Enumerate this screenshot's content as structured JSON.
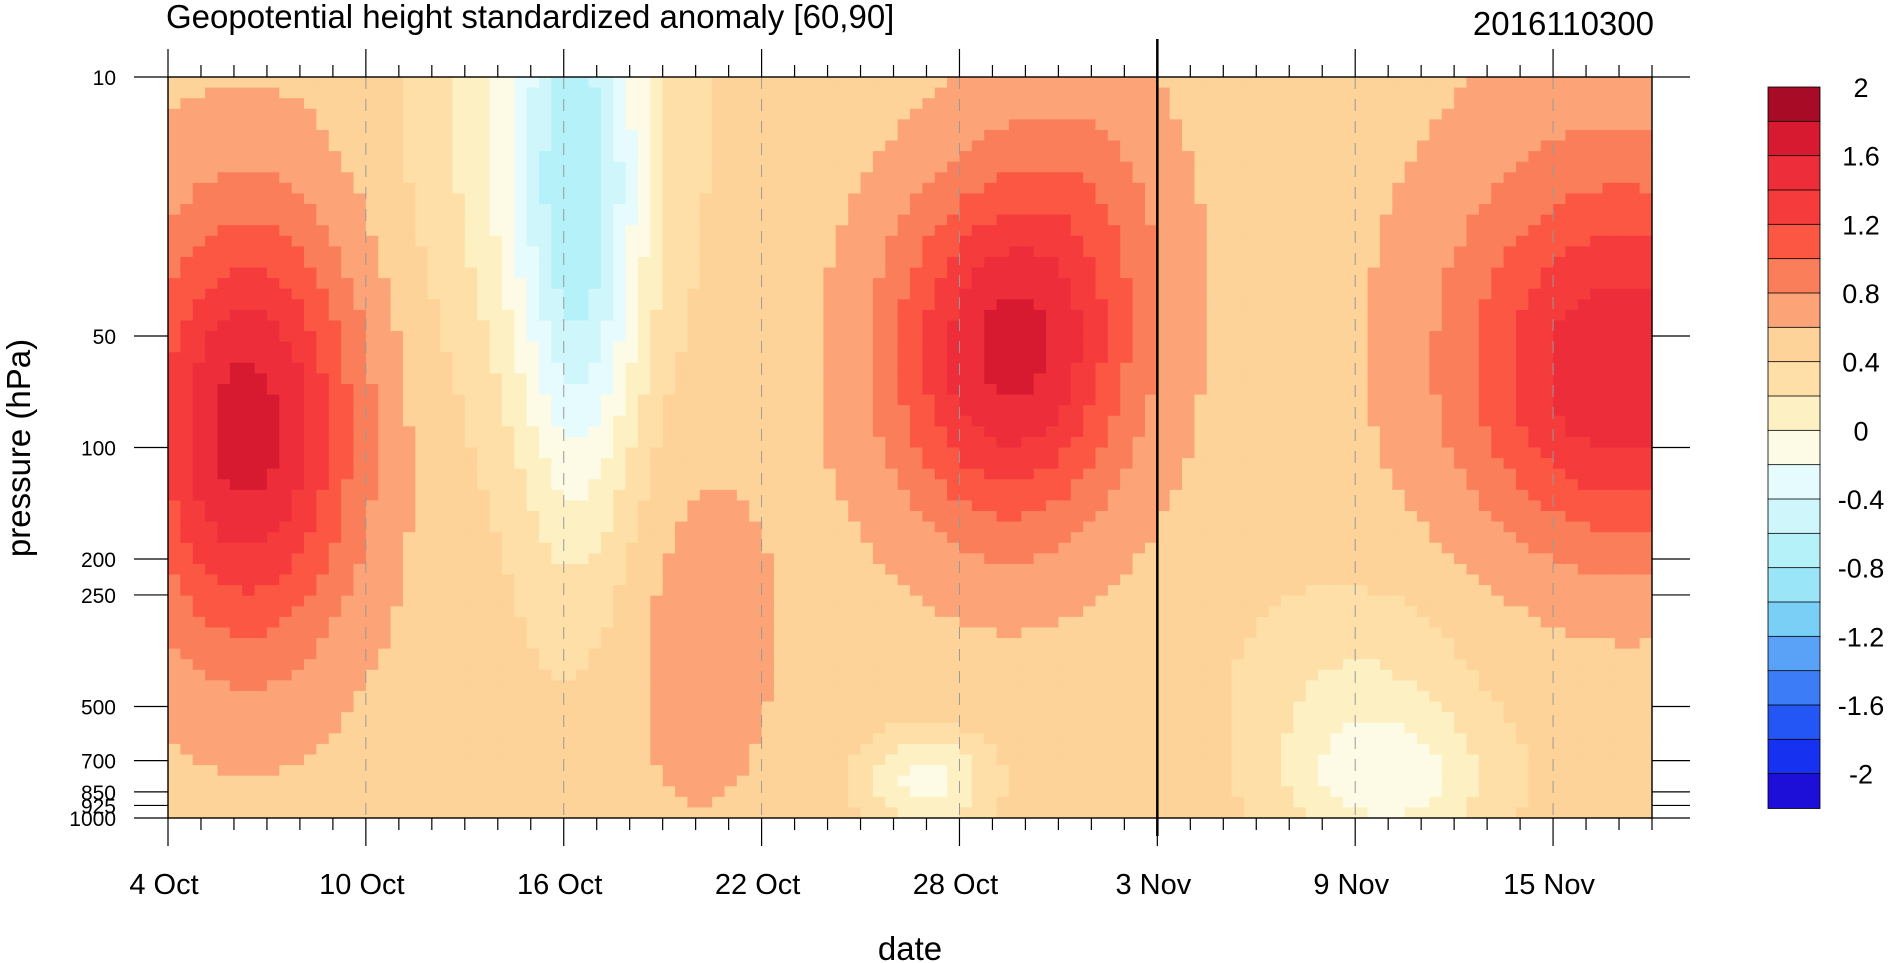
{
  "chart_data": {
    "type": "heatmap",
    "title": "Geopotential height standardized anomaly [60,90]",
    "subtitle": "2016110300",
    "xlabel": "date",
    "ylabel": "pressure (hPa)",
    "x_ticks": [
      "4 Oct",
      "10 Oct",
      "16 Oct",
      "22 Oct",
      "28 Oct",
      "3 Nov",
      "9 Nov",
      "15 Nov"
    ],
    "x_tick_days": [
      0,
      6,
      12,
      18,
      24,
      30,
      36,
      42
    ],
    "x_range_days": [
      0,
      45
    ],
    "y_ticks": [
      "10",
      "50",
      "100",
      "200",
      "250",
      "500",
      "700",
      "850",
      "925",
      "1000"
    ],
    "y_tick_values": [
      10,
      50,
      100,
      200,
      250,
      500,
      700,
      850,
      925,
      1000
    ],
    "y_range": [
      1000,
      10
    ],
    "y_scale": "log",
    "y_reversed": true,
    "forecast_start": "3 Nov",
    "colorbar": {
      "labels": [
        "2",
        "1.6",
        "1.2",
        "0.8",
        "0.4",
        "0",
        "-0.4",
        "-0.8",
        "-1.2",
        "-1.6",
        "-2"
      ],
      "label_values": [
        2,
        1.6,
        1.2,
        0.8,
        0.4,
        0,
        -0.4,
        -0.8,
        -1.2,
        -1.6,
        -2
      ],
      "levels": [
        -2.2,
        -2.0,
        -1.8,
        -1.6,
        -1.4,
        -1.2,
        -1.0,
        -0.8,
        -0.6,
        -0.4,
        -0.2,
        0,
        0.2,
        0.4,
        0.6,
        0.8,
        1.0,
        1.2,
        1.4,
        1.6,
        1.8,
        2.0,
        2.2
      ],
      "colors": [
        "#1e0fd8",
        "#1631f0",
        "#2356f5",
        "#3c7cf7",
        "#5aa2f7",
        "#7acff7",
        "#9ae5f7",
        "#b4f1f8",
        "#cff6fa",
        "#e6fbfd",
        "#fdfbe6",
        "#fdf1c3",
        "#fddfa7",
        "#fdd39a",
        "#fca477",
        "#fb7e5a",
        "#fb5743",
        "#f53b3b",
        "#ee2d3a",
        "#d81a30",
        "#a80b26"
      ]
    }
  }
}
